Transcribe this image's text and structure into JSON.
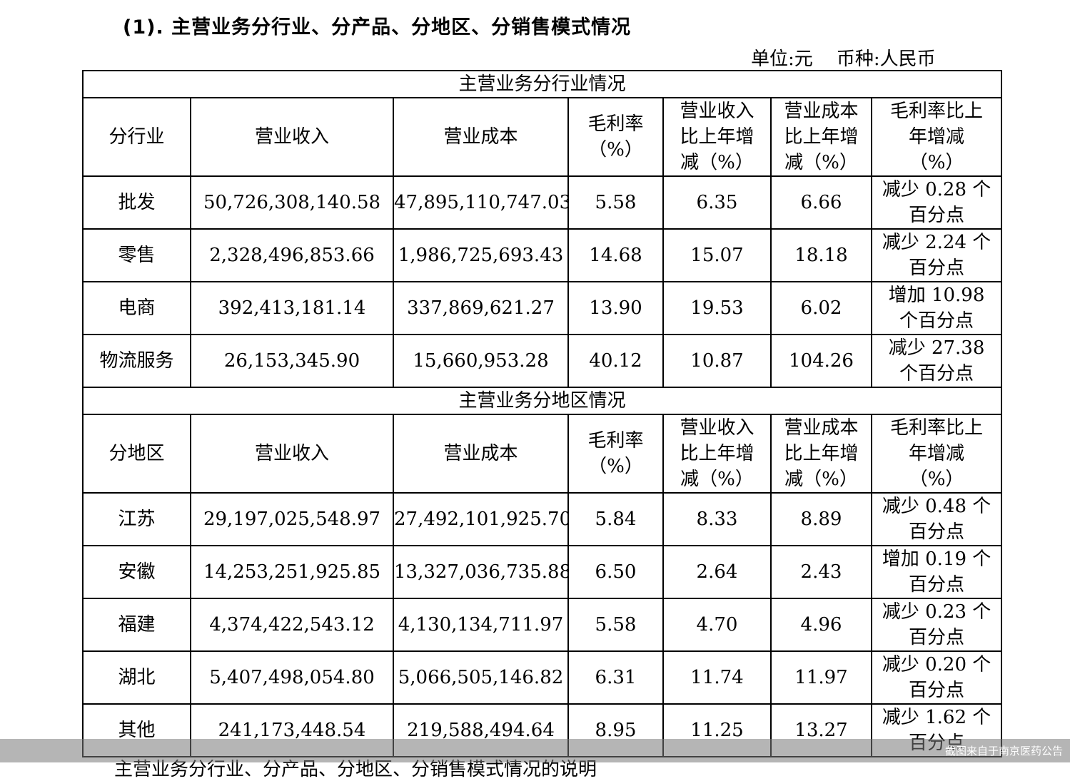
{
  "heading": "(1). 主营业务分行业、分产品、分地区、分销售模式情况",
  "unit_line": "单位:元    币种:人民币",
  "header_labels": {
    "revenue": "营业收入",
    "cost": "营业成本",
    "margin": [
      "毛利率",
      "（%）"
    ],
    "rev_change": [
      "营业收入",
      "比上年增",
      "减（%）"
    ],
    "cost_change": [
      "营业成本",
      "比上年增",
      "减（%）"
    ],
    "margin_change": [
      "毛利率比上",
      "年增减",
      "（%）"
    ]
  },
  "industry": {
    "section_title": "主营业务分行业情况",
    "first_col": "分行业",
    "rows": [
      {
        "name": "批发",
        "revenue": "50,726,308,140.58",
        "cost": "47,895,110,747.03",
        "margin": "5.58",
        "rev_change": "6.35",
        "cost_change": "6.66",
        "margin_change": [
          "减少 0.28 个",
          "百分点"
        ]
      },
      {
        "name": "零售",
        "revenue": "2,328,496,853.66",
        "cost": "1,986,725,693.43",
        "margin": "14.68",
        "rev_change": "15.07",
        "cost_change": "18.18",
        "margin_change": [
          "减少 2.24 个",
          "百分点"
        ]
      },
      {
        "name": "电商",
        "revenue": "392,413,181.14",
        "cost": "337,869,621.27",
        "margin": "13.90",
        "rev_change": "19.53",
        "cost_change": "6.02",
        "margin_change": [
          "增加 10.98",
          "个百分点"
        ]
      },
      {
        "name": "物流服务",
        "revenue": "26,153,345.90",
        "cost": "15,660,953.28",
        "margin": "40.12",
        "rev_change": "10.87",
        "cost_change": "104.26",
        "margin_change": [
          "减少 27.38",
          "个百分点"
        ]
      }
    ]
  },
  "region": {
    "section_title": "主营业务分地区情况",
    "first_col": "分地区",
    "rows": [
      {
        "name": "江苏",
        "revenue": "29,197,025,548.97",
        "cost": "27,492,101,925.70",
        "margin": "5.84",
        "rev_change": "8.33",
        "cost_change": "8.89",
        "margin_change": [
          "减少 0.48 个",
          "百分点"
        ]
      },
      {
        "name": "安徽",
        "revenue": "14,253,251,925.85",
        "cost": "13,327,036,735.88",
        "margin": "6.50",
        "rev_change": "2.64",
        "cost_change": "2.43",
        "margin_change": [
          "增加 0.19 个",
          "百分点"
        ]
      },
      {
        "name": "福建",
        "revenue": "4,374,422,543.12",
        "cost": "4,130,134,711.97",
        "margin": "5.58",
        "rev_change": "4.70",
        "cost_change": "4.96",
        "margin_change": [
          "减少 0.23 个",
          "百分点"
        ]
      },
      {
        "name": "湖北",
        "revenue": "5,407,498,054.80",
        "cost": "5,066,505,146.82",
        "margin": "6.31",
        "rev_change": "11.74",
        "cost_change": "11.97",
        "margin_change": [
          "减少 0.20 个",
          "百分点"
        ]
      },
      {
        "name": "其他",
        "revenue": "241,173,448.54",
        "cost": "219,588,494.64",
        "margin": "8.95",
        "rev_change": "11.25",
        "cost_change": "13.27",
        "margin_change": [
          "减少 1.62 个",
          "百分点"
        ]
      }
    ]
  },
  "watermark": "截图来自于南京医药公告",
  "cut_off_text": "主营业务分行业、分产品、分地区、分销售模式情况的说明"
}
